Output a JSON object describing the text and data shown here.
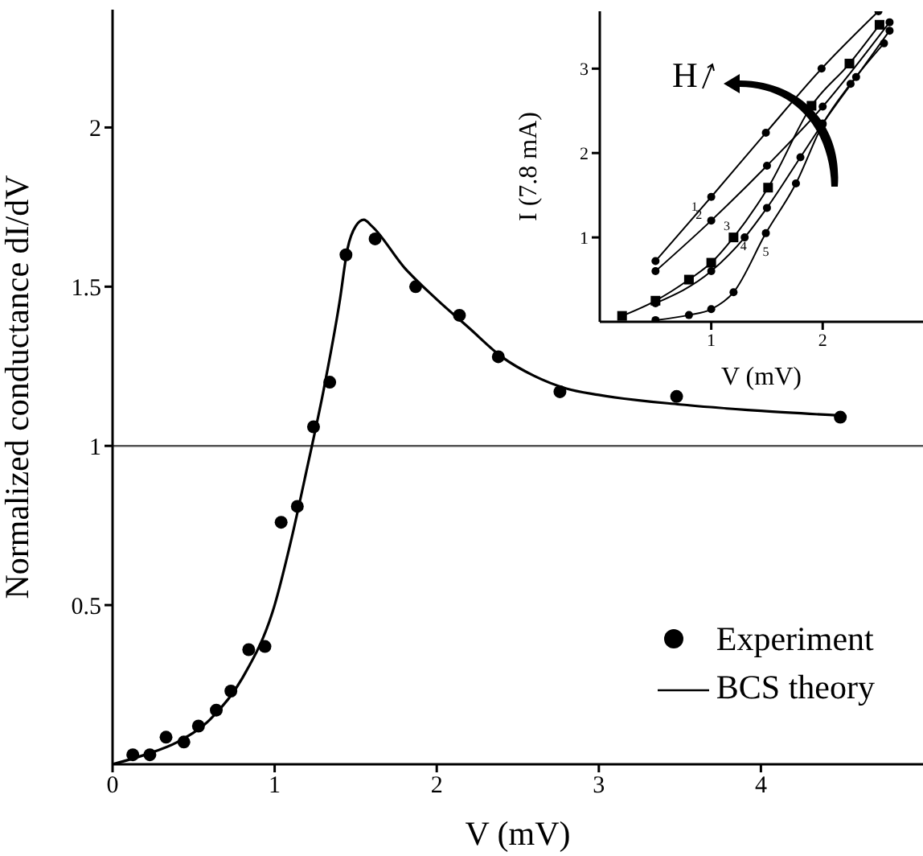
{
  "chart_data": [
    {
      "type": "scatter",
      "xlabel": "V (mV)",
      "ylabel": "Normalized conductance dI/dV",
      "xlim": [
        0,
        5
      ],
      "ylim": [
        0,
        2.37
      ],
      "xticks": [
        0,
        1,
        2,
        3,
        4
      ],
      "yticks": [
        0.5,
        1,
        1.5,
        2
      ],
      "grid": false,
      "legend": "bottom right",
      "ref_lines": [
        {
          "axis": "y",
          "value": 1,
          "color": "#555555"
        }
      ],
      "series": [
        {
          "name": "Experiment",
          "color": "#000000",
          "marker": "circle",
          "x": [
            0.125,
            0.23,
            0.33,
            0.44,
            0.53,
            0.64,
            0.73,
            0.84,
            0.94,
            1.04,
            1.14,
            1.24,
            1.34,
            1.44,
            1.62,
            1.87,
            2.14,
            2.38,
            2.76,
            3.48,
            4.49
          ],
          "values": [
            0.03,
            0.03,
            0.085,
            0.07,
            0.12,
            0.17,
            0.23,
            0.36,
            0.37,
            0.76,
            0.81,
            1.06,
            1.2,
            1.6,
            1.65,
            1.5,
            1.41,
            1.28,
            1.17,
            1.155,
            1.09
          ]
        },
        {
          "name": "BCS theory",
          "type": "line",
          "color": "#000000",
          "marker": "none",
          "x": [
            0,
            0.2,
            0.4,
            0.6,
            0.8,
            1.0,
            1.1,
            1.2,
            1.3,
            1.4,
            1.45,
            1.5,
            1.55,
            1.6,
            1.8,
            2.0,
            2.2,
            2.4,
            2.6,
            2.8,
            3.0,
            3.5,
            4.0,
            4.5
          ],
          "values": [
            0,
            0.03,
            0.07,
            0.14,
            0.27,
            0.5,
            0.7,
            0.93,
            1.17,
            1.45,
            1.62,
            1.69,
            1.71,
            1.69,
            1.56,
            1.46,
            1.37,
            1.28,
            1.22,
            1.18,
            1.16,
            1.13,
            1.11,
            1.095
          ]
        }
      ]
    },
    {
      "type": "line",
      "xlabel": "V (mV)",
      "ylabel": "I (7.8 mA)",
      "xlim": [
        0,
        2.9
      ],
      "ylim": [
        0,
        3.68
      ],
      "xticks": [
        1,
        2
      ],
      "yticks": [
        1,
        2,
        3
      ],
      "grid": false,
      "annotations": [
        "H",
        {
          "text": "1",
          "x": 0.85,
          "y": 1.37
        },
        {
          "text": "2",
          "x": 0.89,
          "y": 1.27
        },
        {
          "text": "3",
          "x": 1.14,
          "y": 1.14
        },
        {
          "text": "4",
          "x": 1.29,
          "y": 0.9
        },
        {
          "text": "5",
          "x": 1.49,
          "y": 0.84
        }
      ],
      "series": [
        {
          "color": "#000000",
          "marker": "circle",
          "x": [
            0.5,
            1.0,
            1.49,
            1.99,
            2.5
          ],
          "values": [
            0.72,
            1.48,
            2.24,
            3.0,
            3.68
          ]
        },
        {
          "color": "#000000",
          "marker": "circle",
          "x": [
            0.5,
            1.0,
            1.5,
            2.0,
            2.6
          ],
          "values": [
            0.6,
            1.2,
            1.85,
            2.55,
            3.55
          ]
        },
        {
          "color": "#000000",
          "marker": "square",
          "x": [
            0.2,
            0.5,
            0.8,
            1.0,
            1.2,
            1.51,
            1.9,
            2.24,
            2.51
          ],
          "values": [
            0.07,
            0.25,
            0.5,
            0.7,
            1.0,
            1.59,
            2.56,
            3.06,
            3.52
          ]
        },
        {
          "color": "#000000",
          "marker": "circle",
          "x": [
            0.5,
            1.0,
            1.3,
            1.5,
            1.8,
            2.0,
            2.3,
            2.6
          ],
          "values": [
            0.22,
            0.6,
            1.0,
            1.35,
            1.95,
            2.35,
            2.9,
            3.45
          ]
        },
        {
          "color": "#000000",
          "marker": "circle",
          "x": [
            0.5,
            0.8,
            1.0,
            1.2,
            1.49,
            1.76,
            2.0,
            2.25,
            2.55
          ],
          "values": [
            0.02,
            0.08,
            0.15,
            0.35,
            1.05,
            1.64,
            2.34,
            2.82,
            3.3
          ]
        }
      ]
    }
  ]
}
